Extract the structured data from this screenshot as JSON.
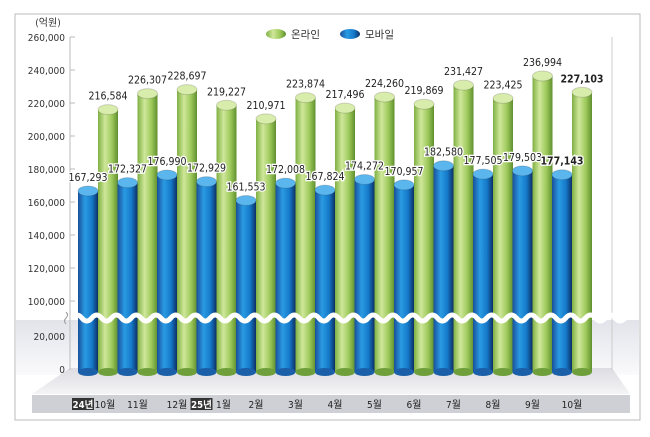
{
  "chart_data": {
    "type": "bar",
    "unit_label": "(억원)",
    "categories": [
      "10월",
      "11월",
      "12월",
      "1월",
      "2월",
      "3월",
      "4월",
      "5월",
      "6월",
      "7월",
      "8월",
      "9월",
      "10월"
    ],
    "year_badges": [
      {
        "index": 0,
        "label": "24년"
      },
      {
        "index": 3,
        "label": "25년"
      }
    ],
    "series": [
      {
        "name": "온라인",
        "color": "#8cc152",
        "values": [
          216584,
          226307,
          228697,
          219227,
          210971,
          223874,
          217496,
          224260,
          219869,
          231427,
          223425,
          236994,
          227103
        ]
      },
      {
        "name": "모바일",
        "color": "#1e88d6",
        "values": [
          167293,
          172327,
          176990,
          172929,
          161553,
          172008,
          167824,
          174272,
          170957,
          182580,
          177505,
          179503,
          177143
        ]
      }
    ],
    "y_ticks_upper": [
      "260,000",
      "240,000",
      "220,000",
      "200,000",
      "180,000",
      "160,000",
      "140,000",
      "120,000",
      "100,000"
    ],
    "y_ticks_lower": [
      "20,000",
      "0"
    ],
    "y_axis_break": [
      20000,
      100000
    ],
    "ylim": [
      0,
      260000
    ],
    "legend_position": "top-center",
    "highlight_last": true
  }
}
